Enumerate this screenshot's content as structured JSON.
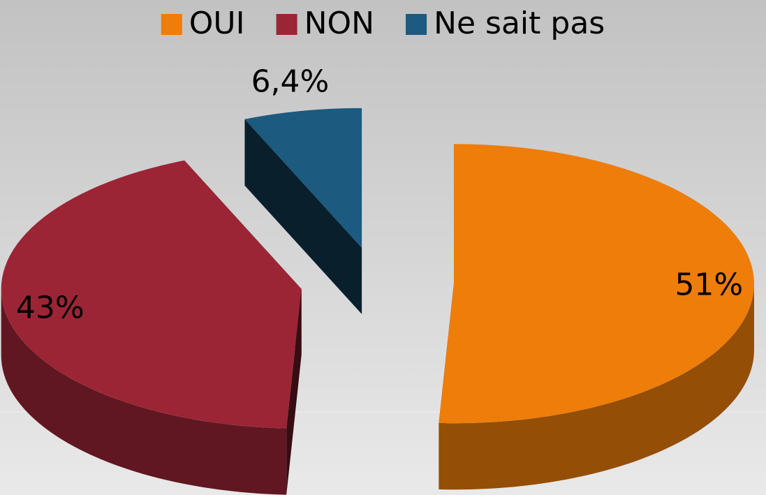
{
  "chart_data": {
    "type": "pie",
    "categories": [
      "OUI",
      "NON",
      "Ne sait pas"
    ],
    "values": [
      51,
      43,
      6.4
    ],
    "value_labels": [
      "51%",
      "43%",
      "6,4%"
    ],
    "colors": [
      "#ee7d0a",
      "#9b2535",
      "#1c5a7f"
    ],
    "legend": "top"
  }
}
